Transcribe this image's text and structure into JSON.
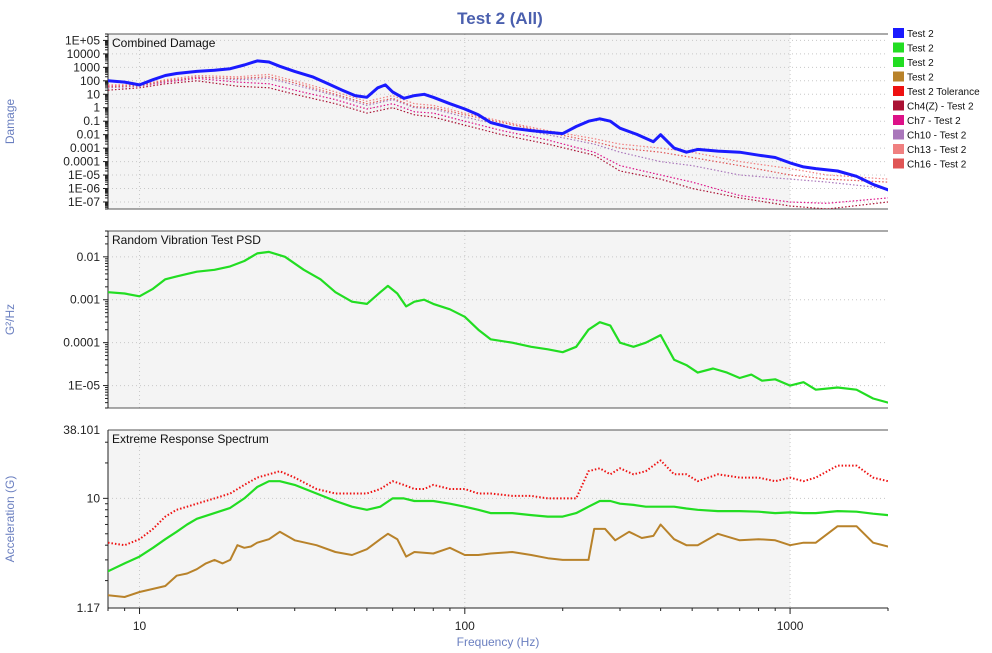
{
  "chart_data": {
    "title": "Test 2 (All)",
    "type": "line",
    "xlabel": "Frequency (Hz)",
    "xscale": "log",
    "xlim": [
      8,
      2000
    ],
    "xticks": [
      10,
      100,
      1000
    ],
    "xtick_labels": [
      "10",
      "100",
      "1000"
    ],
    "grid": true,
    "legend": {
      "placement": "top-right",
      "entries": [
        {
          "label": "Test 2",
          "color": "#1a1aff"
        },
        {
          "label": "Test 2",
          "color": "#22dd22"
        },
        {
          "label": "Test 2",
          "color": "#22dd22"
        },
        {
          "label": "Test 2",
          "color": "#b8822a"
        },
        {
          "label": "Test 2 Tolerance",
          "color": "#ee1111"
        },
        {
          "label": "Ch4(Z) - Test 2",
          "color": "#aa1133"
        },
        {
          "label": "Ch7 - Test 2",
          "color": "#dd1188"
        },
        {
          "label": "Ch10 - Test 2",
          "color": "#aa77bb"
        },
        {
          "label": "Ch13 - Test 2",
          "color": "#f08080"
        },
        {
          "label": "Ch16 - Test 2",
          "color": "#e05555"
        }
      ]
    },
    "panels": [
      {
        "title": "Combined Damage",
        "ylabel": "Damage",
        "yscale": "log",
        "ylim": [
          3e-08,
          300000.0
        ],
        "yticks": [
          100000.0,
          10000.0,
          1000,
          100,
          10,
          1,
          0.1,
          0.01,
          0.001,
          0.0001,
          1e-05,
          1e-06,
          1e-07
        ],
        "ytick_labels": [
          "1E+05",
          "10000",
          "1000",
          "100",
          "10",
          "1",
          "0.1",
          "0.01",
          "0.001",
          "0.0001",
          "1E-05",
          "1E-06",
          "1E-07"
        ],
        "series": [
          {
            "color": "#aa1133",
            "style": "dotted",
            "width": 1.2,
            "x": [
              8,
              10,
              12,
              15,
              20,
              25,
              30,
              40,
              50,
              60,
              70,
              80,
              100,
              130,
              180,
              250,
              300,
              400,
              500,
              700,
              1000,
              1300,
              2000
            ],
            "y": [
              20,
              30,
              60,
              100,
              40,
              30,
              10,
              2,
              0.4,
              1,
              0.3,
              0.2,
              0.05,
              0.01,
              0.002,
              0.0003,
              2e-05,
              5e-06,
              1e-06,
              2e-07,
              5e-08,
              3e-08,
              1e-07
            ]
          },
          {
            "color": "#dd1188",
            "style": "dotted",
            "width": 1.2,
            "x": [
              8,
              10,
              12,
              15,
              20,
              25,
              30,
              40,
              50,
              60,
              70,
              80,
              100,
              130,
              180,
              250,
              300,
              400,
              500,
              700,
              1000,
              1300,
              2000
            ],
            "y": [
              40,
              40,
              80,
              150,
              80,
              60,
              20,
              4,
              0.8,
              2,
              0.5,
              0.4,
              0.1,
              0.02,
              0.004,
              0.0005,
              5e-05,
              1e-05,
              3e-06,
              3e-07,
              1e-07,
              8e-08,
              2e-07
            ]
          },
          {
            "color": "#aa77bb",
            "style": "dotted",
            "width": 1.2,
            "x": [
              8,
              10,
              12,
              15,
              20,
              25,
              30,
              40,
              50,
              60,
              70,
              80,
              100,
              130,
              180,
              250,
              300,
              400,
              500,
              700,
              1000,
              1300,
              2000
            ],
            "y": [
              30,
              40,
              90,
              200,
              120,
              150,
              50,
              8,
              1.5,
              4,
              1,
              0.8,
              0.2,
              0.05,
              0.01,
              0.002,
              0.0005,
              0.0001,
              5e-05,
              1e-05,
              5e-06,
              3e-06,
              1e-06
            ]
          },
          {
            "color": "#f08080",
            "style": "dotted",
            "width": 1.2,
            "x": [
              8,
              10,
              12,
              15,
              20,
              25,
              30,
              40,
              50,
              60,
              70,
              80,
              100,
              130,
              180,
              250,
              300,
              400,
              500,
              700,
              1000,
              1300,
              2000
            ],
            "y": [
              50,
              50,
              120,
              250,
              200,
              300,
              100,
              15,
              3,
              8,
              2,
              1.5,
              0.4,
              0.1,
              0.02,
              0.005,
              0.002,
              0.001,
              0.0005,
              0.0001,
              3e-05,
              1e-05,
              5e-06
            ]
          },
          {
            "color": "#e05555",
            "style": "dotted",
            "width": 1.2,
            "x": [
              8,
              10,
              12,
              15,
              20,
              25,
              30,
              40,
              50,
              60,
              70,
              80,
              100,
              130,
              180,
              250,
              300,
              400,
              500,
              700,
              1000,
              1300,
              2000
            ],
            "y": [
              35,
              45,
              100,
              180,
              150,
              200,
              70,
              10,
              2,
              5,
              1.2,
              1,
              0.3,
              0.08,
              0.015,
              0.003,
              0.001,
              0.0005,
              0.0002,
              5e-05,
              1e-05,
              5e-06,
              3e-06
            ]
          },
          {
            "color": "#1a1aff",
            "style": "solid",
            "width": 3,
            "x": [
              8,
              9,
              10,
              11,
              12,
              13,
              15,
              17,
              19,
              21,
              23,
              25,
              27,
              30,
              34,
              38,
              42,
              46,
              50,
              54,
              57,
              60,
              65,
              70,
              75,
              80,
              90,
              100,
              110,
              120,
              140,
              160,
              180,
              200,
              220,
              240,
              260,
              280,
              300,
              340,
              380,
              400,
              440,
              480,
              520,
              600,
              700,
              800,
              900,
              1000,
              1100,
              1200,
              1400,
              1600,
              1800,
              2000
            ],
            "y": [
              100,
              80,
              50,
              120,
              250,
              350,
              500,
              600,
              800,
              1500,
              3000,
              2500,
              1200,
              500,
              200,
              60,
              20,
              8,
              6,
              30,
              50,
              15,
              5,
              8,
              10,
              6,
              2,
              0.8,
              0.3,
              0.08,
              0.03,
              0.02,
              0.015,
              0.012,
              0.04,
              0.1,
              0.15,
              0.1,
              0.03,
              0.01,
              0.003,
              0.01,
              0.001,
              0.0005,
              0.0008,
              0.0006,
              0.0005,
              0.0003,
              0.0002,
              8e-05,
              4e-05,
              3e-05,
              2e-05,
              8e-06,
              2e-06,
              8e-07
            ]
          }
        ]
      },
      {
        "title": "Random Vibration Test PSD",
        "ylabel": "G²/Hz",
        "yscale": "log",
        "ylim": [
          3e-06,
          0.04
        ],
        "yticks": [
          0.01,
          0.001,
          0.0001,
          1e-05
        ],
        "ytick_labels": [
          "0.01",
          "0.001",
          "0.0001",
          "1E-05"
        ],
        "series": [
          {
            "color": "#22dd22",
            "style": "solid",
            "width": 2.2,
            "x": [
              8,
              9,
              10,
              11,
              12,
              13,
              14,
              15,
              17,
              19,
              21,
              23,
              25,
              28,
              32,
              36,
              40,
              45,
              50,
              55,
              58,
              62,
              66,
              70,
              75,
              80,
              90,
              100,
              110,
              120,
              140,
              160,
              180,
              200,
              220,
              240,
              260,
              280,
              300,
              330,
              360,
              400,
              440,
              480,
              520,
              580,
              640,
              700,
              760,
              820,
              900,
              1000,
              1100,
              1200,
              1400,
              1600,
              1800,
              2000
            ],
            "y": [
              0.0015,
              0.0014,
              0.0012,
              0.0018,
              0.003,
              0.0035,
              0.004,
              0.0045,
              0.005,
              0.006,
              0.008,
              0.012,
              0.013,
              0.01,
              0.005,
              0.003,
              0.0015,
              0.0009,
              0.0008,
              0.0015,
              0.0021,
              0.0014,
              0.0007,
              0.0009,
              0.001,
              0.0008,
              0.0006,
              0.0004,
              0.0002,
              0.00012,
              0.0001,
              8e-05,
              7e-05,
              6e-05,
              8e-05,
              0.0002,
              0.0003,
              0.00025,
              0.0001,
              8e-05,
              0.0001,
              0.00015,
              4e-05,
              3e-05,
              2e-05,
              2.5e-05,
              2e-05,
              1.5e-05,
              1.8e-05,
              1.3e-05,
              1.4e-05,
              1e-05,
              1.2e-05,
              8e-06,
              9e-06,
              8e-06,
              5e-06,
              4e-06
            ]
          }
        ]
      },
      {
        "title": "Extreme Response Spectrum",
        "ylabel": "Acceleration (G)",
        "yscale": "log",
        "ylim": [
          1.17,
          38.101
        ],
        "yticks": [
          38.101,
          10,
          1.17
        ],
        "ytick_labels": [
          "38.101",
          "10",
          "1.17"
        ],
        "series": [
          {
            "color": "#ee1111",
            "style": "dotted",
            "width": 2,
            "x": [
              8,
              9,
              10,
              11,
              12,
              13,
              14,
              15,
              17,
              19,
              21,
              23,
              25,
              27,
              30,
              35,
              40,
              45,
              50,
              55,
              60,
              65,
              70,
              75,
              80,
              90,
              100,
              110,
              120,
              140,
              160,
              180,
              200,
              220,
              240,
              260,
              280,
              300,
              330,
              360,
              400,
              440,
              480,
              520,
              600,
              700,
              800,
              900,
              1000,
              1100,
              1200,
              1400,
              1600,
              1800,
              2000
            ],
            "y": [
              4.2,
              4,
              4.5,
              5.5,
              7,
              8,
              8.5,
              9,
              10,
              11,
              13,
              15,
              16,
              17,
              15,
              12,
              11,
              11,
              11,
              12,
              14,
              13,
              12,
              12,
              13,
              12,
              12,
              11,
              11,
              10.5,
              10.5,
              10,
              10,
              10,
              17,
              18,
              16,
              18,
              16,
              17,
              21,
              16,
              16,
              14,
              16,
              15,
              15,
              14,
              15,
              14,
              15,
              19,
              19,
              15,
              14
            ]
          },
          {
            "color": "#22dd22",
            "style": "solid",
            "width": 2.2,
            "x": [
              8,
              9,
              10,
              11,
              12,
              13,
              14,
              15,
              17,
              19,
              21,
              23,
              25,
              27,
              30,
              35,
              40,
              45,
              50,
              55,
              60,
              65,
              70,
              75,
              80,
              90,
              100,
              110,
              120,
              140,
              160,
              180,
              200,
              220,
              240,
              260,
              280,
              300,
              330,
              360,
              400,
              440,
              480,
              520,
              600,
              700,
              800,
              900,
              1000,
              1100,
              1200,
              1400,
              1600,
              1800,
              2000
            ],
            "y": [
              2.4,
              2.8,
              3.2,
              3.8,
              4.5,
              5.2,
              6,
              6.7,
              7.5,
              8.3,
              10,
              12.5,
              14,
              14,
              13,
              11,
              9.5,
              8.5,
              8,
              8.5,
              10,
              10,
              9.5,
              9.5,
              9.5,
              9,
              8.5,
              8,
              7.5,
              7.5,
              7.2,
              7,
              7,
              7.5,
              8.5,
              9.5,
              9.5,
              9,
              8.8,
              8.5,
              8.5,
              8.5,
              8.2,
              8,
              7.8,
              7.8,
              7.7,
              7.5,
              7.6,
              7.5,
              7.5,
              7.8,
              7.7,
              7.4,
              7.2
            ]
          },
          {
            "color": "#b8822a",
            "style": "solid",
            "width": 2,
            "x": [
              8,
              9,
              10,
              11,
              12,
              13,
              14,
              15,
              16,
              17,
              18,
              19,
              20,
              21,
              22,
              23,
              25,
              27,
              30,
              35,
              40,
              45,
              50,
              55,
              58,
              62,
              66,
              70,
              80,
              90,
              100,
              110,
              120,
              140,
              160,
              180,
              200,
              220,
              240,
              250,
              270,
              290,
              320,
              350,
              380,
              400,
              440,
              480,
              520,
              600,
              700,
              800,
              900,
              1000,
              1100,
              1200,
              1400,
              1600,
              1800,
              2000
            ],
            "y": [
              1.5,
              1.45,
              1.6,
              1.7,
              1.8,
              2.2,
              2.3,
              2.5,
              2.8,
              3,
              2.8,
              3,
              4,
              3.8,
              3.9,
              4.2,
              4.5,
              5.2,
              4.4,
              4,
              3.5,
              3.3,
              3.7,
              4.5,
              5,
              4.5,
              3.2,
              3.5,
              3.4,
              3.8,
              3.3,
              3.3,
              3.4,
              3.5,
              3.3,
              3.1,
              3,
              3,
              3,
              5.5,
              5.5,
              4.4,
              5.2,
              4.6,
              4.8,
              6,
              4.5,
              4,
              4,
              5,
              4.4,
              4.5,
              4.4,
              4,
              4.2,
              4.2,
              5.8,
              5.8,
              4.2,
              3.9
            ]
          }
        ]
      }
    ]
  }
}
